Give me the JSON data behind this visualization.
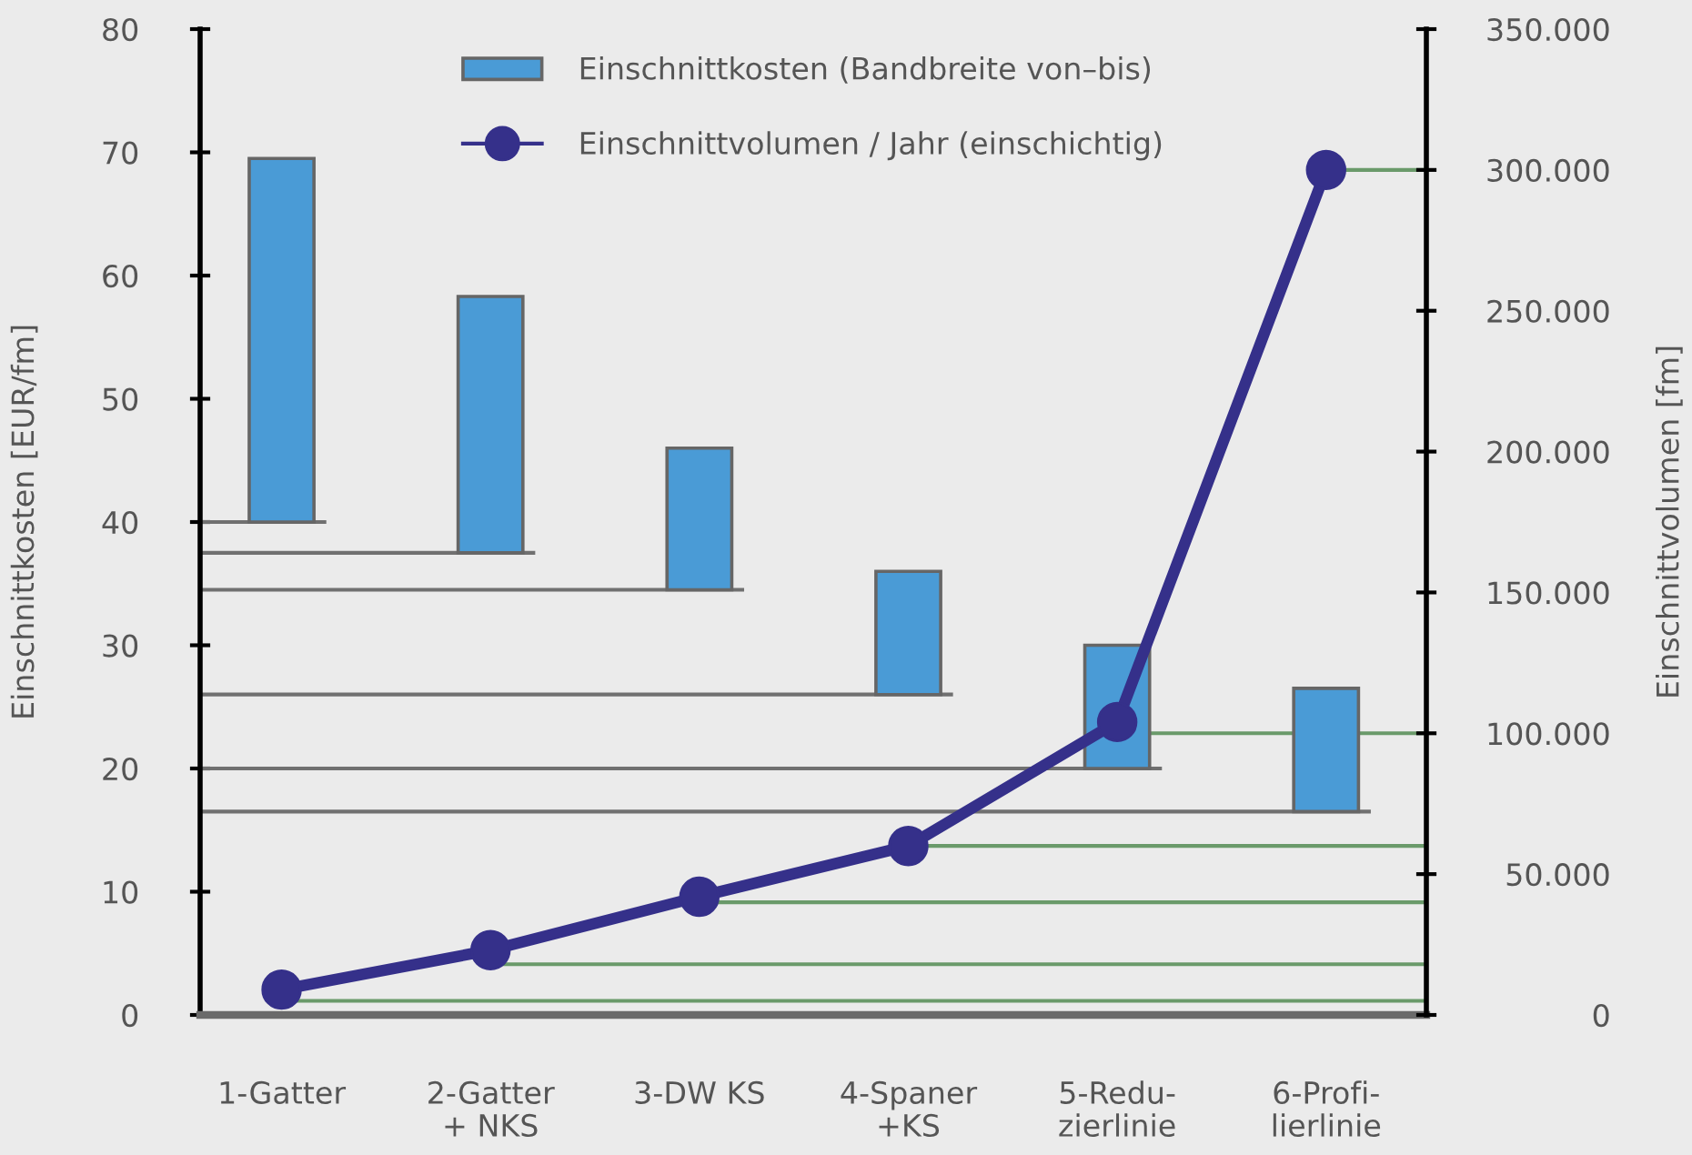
{
  "chart_data": {
    "type": "bar",
    "categories": [
      "1-Gatter",
      "2-Gatter\n+ NKS",
      "3-DW KS",
      "4-Spaner\n+KS",
      "5-Redu-\nzierlinie",
      "6-Profi-\nlierlinie"
    ],
    "ylabel": "Einschnittkosten [EUR/fm]",
    "y2label": "Einschnittvolumen [fm]",
    "ylim": [
      0,
      80
    ],
    "yticks": [
      0,
      10,
      20,
      30,
      40,
      50,
      60,
      70,
      80
    ],
    "y2lim": [
      0,
      350000
    ],
    "y2ticks": [
      0,
      {
        "value": 50000,
        "label": "50.000"
      },
      {
        "value": 100000,
        "label": "100.000"
      },
      {
        "value": 150000,
        "label": "150.000"
      },
      {
        "value": 200000,
        "label": "200.000"
      },
      {
        "value": 250000,
        "label": "250.000"
      },
      {
        "value": 300000,
        "label": "300.000"
      },
      {
        "value": 350000,
        "label": "350.000"
      }
    ],
    "series": [
      {
        "name": "Einschnittkosten (Bandbreite von–bis)",
        "color": "#4a9bd6",
        "values": [
          29.5,
          20.8,
          11.5,
          10,
          10,
          10
        ],
        "base": [
          40,
          37.5,
          34.5,
          26,
          20,
          16.5
        ]
      },
      {
        "name": "Einschnittvolumen / Jahr (einschichtig)",
        "type": "line",
        "axis": "y2",
        "color": "#35308a",
        "values": [
          9000,
          23000,
          42000,
          60000,
          104000,
          300000
        ]
      }
    ],
    "marker": "circle",
    "line_style": "solid",
    "legend": "top",
    "ref_lines": [
      {
        "axis": "y",
        "value": 40,
        "color": "#707070"
      },
      {
        "axis": "y",
        "value": 37.5,
        "color": "#707070"
      },
      {
        "axis": "y",
        "value": 34.5,
        "color": "#707070"
      },
      {
        "axis": "y",
        "value": 26,
        "color": "#707070"
      },
      {
        "axis": "y",
        "value": 20,
        "color": "#707070"
      },
      {
        "axis": "y",
        "value": 16.5,
        "color": "#707070"
      },
      {
        "axis": "y2",
        "value": 5000,
        "color": "#6a9a6a"
      },
      {
        "axis": "y2",
        "value": 18000,
        "color": "#6a9a6a"
      },
      {
        "axis": "y2",
        "value": 40000,
        "color": "#6a9a6a"
      },
      {
        "axis": "y2",
        "value": 60000,
        "color": "#6a9a6a"
      },
      {
        "axis": "y2",
        "value": 100000,
        "color": "#6a9a6a"
      },
      {
        "axis": "y2",
        "value": 300000,
        "color": "#6a9a6a"
      }
    ]
  }
}
